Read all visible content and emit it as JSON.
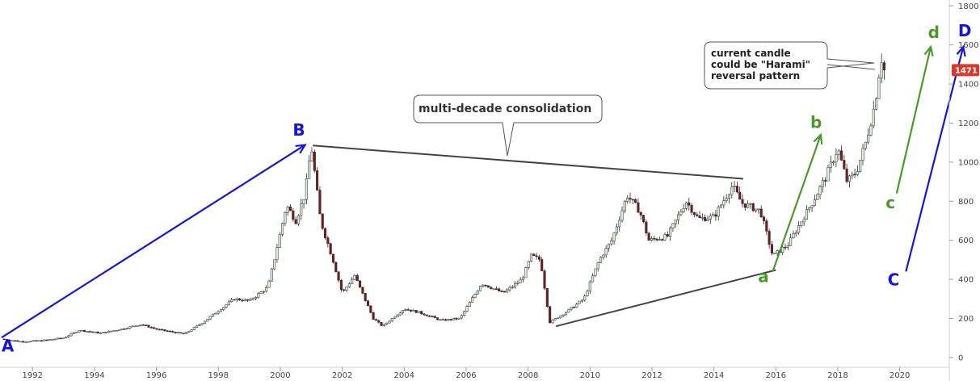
{
  "chart_data": {
    "type": "candlestick",
    "y_axis": {
      "ticks": [
        0,
        200,
        400,
        600,
        800,
        1000,
        1200,
        1400,
        1600,
        1800
      ],
      "range": [
        -50,
        1830
      ],
      "position": "right"
    },
    "x_axis": {
      "ticks": [
        "1992",
        "1994",
        "1996",
        "1998",
        "2000",
        "2002",
        "2004",
        "2006",
        "2008",
        "2010",
        "2012",
        "2014",
        "2016",
        "2018",
        "2020"
      ],
      "range": [
        1990.95,
        2021.6
      ]
    },
    "current_price": {
      "label": "1471",
      "value": 1471,
      "color": "#d63a2a"
    },
    "price_path": [
      [
        1991.0,
        95
      ],
      [
        1991.6,
        82
      ],
      [
        1992.2,
        85
      ],
      [
        1993.0,
        100
      ],
      [
        1993.5,
        140
      ],
      [
        1994.2,
        125
      ],
      [
        1995.0,
        150
      ],
      [
        1995.5,
        170
      ],
      [
        1996.0,
        145
      ],
      [
        1996.9,
        120
      ],
      [
        1997.5,
        180
      ],
      [
        1998.0,
        240
      ],
      [
        1998.5,
        300
      ],
      [
        1999.0,
        290
      ],
      [
        1999.6,
        360
      ],
      [
        2000.2,
        780
      ],
      [
        2000.5,
        700
      ],
      [
        2000.8,
        840
      ],
      [
        2001.0,
        1085
      ],
      [
        2001.3,
        700
      ],
      [
        2001.7,
        500
      ],
      [
        2002.0,
        330
      ],
      [
        2002.4,
        420
      ],
      [
        2003.0,
        200
      ],
      [
        2003.3,
        160
      ],
      [
        2004.0,
        250
      ],
      [
        2004.5,
        230
      ],
      [
        2005.2,
        190
      ],
      [
        2005.8,
        200
      ],
      [
        2006.5,
        380
      ],
      [
        2007.2,
        330
      ],
      [
        2007.8,
        400
      ],
      [
        2008.1,
        520
      ],
      [
        2008.4,
        500
      ],
      [
        2008.7,
        180
      ],
      [
        2009.2,
        230
      ],
      [
        2009.8,
        300
      ],
      [
        2010.3,
        500
      ],
      [
        2010.7,
        600
      ],
      [
        2011.2,
        830
      ],
      [
        2011.6,
        750
      ],
      [
        2011.9,
        600
      ],
      [
        2012.5,
        620
      ],
      [
        2013.1,
        800
      ],
      [
        2013.5,
        710
      ],
      [
        2014.0,
        720
      ],
      [
        2014.6,
        880
      ],
      [
        2014.9,
        790
      ],
      [
        2015.5,
        750
      ],
      [
        2015.9,
        520
      ],
      [
        2016.4,
        580
      ],
      [
        2016.9,
        720
      ],
      [
        2017.2,
        800
      ],
      [
        2017.6,
        920
      ],
      [
        2018.0,
        1070
      ],
      [
        2018.3,
        900
      ],
      [
        2018.6,
        950
      ],
      [
        2018.9,
        1100
      ],
      [
        2019.2,
        1300
      ],
      [
        2019.4,
        1540
      ],
      [
        2019.5,
        1471
      ]
    ],
    "trendlines": [
      {
        "name": "upper-consolidation",
        "from": [
          2001.05,
          1085
        ],
        "to": [
          2014.95,
          915
        ],
        "color": "#444444"
      },
      {
        "name": "lower-consolidation",
        "from": [
          2008.9,
          160
        ],
        "to": [
          2016.0,
          448
        ],
        "color": "#444444"
      }
    ],
    "arrows": [
      {
        "name": "wave-a-to-b",
        "from": [
          1991.0,
          102
        ],
        "to": [
          2000.8,
          1088
        ],
        "color": "#1515e0"
      },
      {
        "name": "wave-c-to-d",
        "from": [
          2020.2,
          440
        ],
        "to": [
          2022.05,
          1590
        ],
        "color": "#1515e0"
      },
      {
        "name": "wave-a-to-b-small",
        "from": [
          2015.9,
          440
        ],
        "to": [
          2017.45,
          1140
        ],
        "color": "#4a9a2a"
      },
      {
        "name": "wave-c-to-d-small",
        "from": [
          2019.9,
          840
        ],
        "to": [
          2021.0,
          1590
        ],
        "color": "#4a9a2a"
      }
    ],
    "wave_labels": [
      {
        "text": "A",
        "x": 1991.2,
        "y": 30,
        "color": "#1515e0"
      },
      {
        "text": "B",
        "x": 2000.6,
        "y": 1135,
        "color": "#1515e0"
      },
      {
        "text": "C",
        "x": 2019.8,
        "y": 370,
        "color": "#1515e0"
      },
      {
        "text": "D",
        "x": 2022.1,
        "y": 1645,
        "color": "#1515e0"
      },
      {
        "text": "a",
        "x": 2015.6,
        "y": 385,
        "color": "#4a9a2a"
      },
      {
        "text": "b",
        "x": 2017.3,
        "y": 1175,
        "color": "#4a9a2a"
      },
      {
        "text": "c",
        "x": 2019.7,
        "y": 765,
        "color": "#4a9a2a"
      },
      {
        "text": "d",
        "x": 2021.1,
        "y": 1635,
        "color": "#4a9a2a"
      }
    ],
    "annotations": [
      {
        "lines": [
          "multi-decade consolidation"
        ]
      },
      {
        "lines": [
          "current candle",
          "could be \"Harami\"",
          "reversal pattern"
        ]
      }
    ]
  }
}
